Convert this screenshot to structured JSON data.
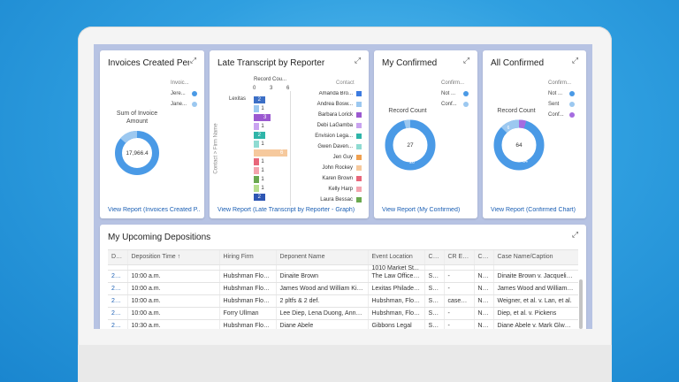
{
  "colors": {
    "accent": "#4a9ae6",
    "light": "#9cc8f0",
    "purple": "#a56ce0",
    "link": "#1b5fb4"
  },
  "invoices": {
    "title": "Invoices Created Per...",
    "legend_title": "Invoic...",
    "legend": [
      "Jere...",
      "Jane..."
    ],
    "metric_label_line1": "Sum of Invoice",
    "metric_label_line2": "Amount",
    "center_value": "17,966.4",
    "view_report": "View Report (Invoices Created P..."
  },
  "late": {
    "title": "Late Transcript by Reporter",
    "axis_title": "Record Cou...",
    "ticks": [
      "0",
      "3",
      "6"
    ],
    "y_axis_label": "Contact > Firm Name",
    "firm_label": "Lexitas",
    "legend_title": "Contact",
    "bars": [
      {
        "value": 2,
        "color": "#3c6fc6"
      },
      {
        "value": 1,
        "color": "#9cc8f0"
      },
      {
        "value": 3,
        "color": "#9b59d0"
      },
      {
        "value": 1,
        "color": "#c9a3f0"
      },
      {
        "value": 2,
        "color": "#2fb5a9"
      },
      {
        "value": 1,
        "color": "#8fdbd2"
      },
      {
        "value": 6,
        "color": "#f6c99d"
      },
      {
        "value": 1,
        "color": "#e8667a"
      },
      {
        "value": 1,
        "color": "#f4a3ae"
      },
      {
        "value": 1,
        "color": "#6aa84f"
      },
      {
        "value": 1,
        "color": "#b7de8e"
      },
      {
        "value": 2,
        "color": "#2e56b3"
      }
    ],
    "legend": [
      {
        "name": "Amanda Bro...",
        "color": "#3c7be0"
      },
      {
        "name": "Andrea Bosw...",
        "color": "#9cc8f0"
      },
      {
        "name": "Barbara Lorick",
        "color": "#9b59d0"
      },
      {
        "name": "Debi LaGamba",
        "color": "#c9a3f0"
      },
      {
        "name": "Envision Lega...",
        "color": "#2fb5a9"
      },
      {
        "name": "Gwen Daven...",
        "color": "#8fdbd2"
      },
      {
        "name": "Jen Guy",
        "color": "#f0a050"
      },
      {
        "name": "John Rockey",
        "color": "#f6c99d"
      },
      {
        "name": "Karen Brown",
        "color": "#e8667a"
      },
      {
        "name": "Kelly Harp",
        "color": "#f4a3ae"
      },
      {
        "name": "Laura Bessac",
        "color": "#6aa84f"
      }
    ],
    "view_report": "View Report (Late Transcript by Reporter - Graph)"
  },
  "myconfirmed": {
    "title": "My Confirmed",
    "legend_title": "Confirm...",
    "legend": [
      "Not ...",
      "Conf..."
    ],
    "record_count_label": "Record Count",
    "center_value": "27",
    "segment_value": "26",
    "view_report": "View Report (My Confirmed)"
  },
  "allconfirmed": {
    "title": "All Confirmed",
    "legend_title": "Confirm...",
    "legend": [
      "Not ...",
      "Sent",
      "Conf..."
    ],
    "record_count_label": "Record Count",
    "center_value": "64",
    "segment_value": "54",
    "small_segment_value": "6",
    "view_report": "View Report (Confirmed Chart)"
  },
  "depositions": {
    "title": "My Upcoming Depositions",
    "columns": [
      "De...",
      "Deposition Time ↑",
      "Hiring Firm",
      "Deponent Name",
      "Event Location",
      "Co...",
      "CR Email",
      "Co...",
      "Case Name/Caption"
    ],
    "top_overflow": [
      "",
      "",
      "",
      "",
      "1010 Market St...",
      "",
      "",
      "",
      ""
    ],
    "rows": [
      [
        "20...",
        "10:00 a.m.",
        "Hubshman Flood...",
        "Dinaite Brown",
        "The Law Offices o...",
        "Sent",
        "-",
        "No...",
        "Dinaite Brown v. Jacqueline A..."
      ],
      [
        "20...",
        "10:00 a.m.",
        "Hubshman Flood...",
        "James Wood and William Kinc...",
        "Lexitas Philadelp...",
        "Sent",
        "-",
        "No...",
        "James Wood and William Kinc..."
      ],
      [
        "20...",
        "10:00 a.m.",
        "Hubshman Flood...",
        "2 pltfs & 2 def.",
        "Hubshman, Floo...",
        "Sent",
        "caseya...",
        "No...",
        "Weigner, et al. v. Lan, et al."
      ],
      [
        "20...",
        "10:00 a.m.",
        "Forry Ullman",
        "Lee Diep, Lena Duong, Anna N...",
        "Hubshman, Floo...",
        "Sent",
        "-",
        "No...",
        "Diep, et al. v. Pickens"
      ],
      [
        "20...",
        "10:30 a.m.",
        "Hubshman Flood...",
        "Diane Abele",
        "Gibbons Legal",
        "Sent",
        "-",
        "No...",
        "Diane Abele v. Mark Glwerosi..."
      ]
    ]
  }
}
